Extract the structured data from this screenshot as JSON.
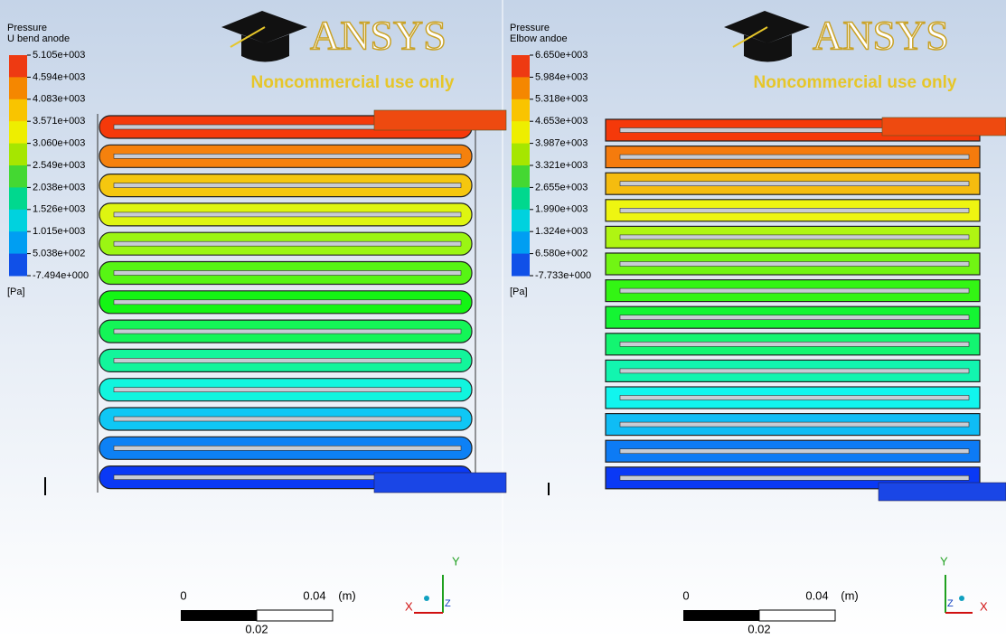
{
  "panels": [
    {
      "legend": {
        "title": "Pressure",
        "subtitle": "U bend anode",
        "labels": [
          "5.105e+003",
          "4.594e+003",
          "4.083e+003",
          "3.571e+003",
          "3.060e+003",
          "2.549e+003",
          "2.038e+003",
          "1.526e+003",
          "1.015e+003",
          "5.038e+002",
          "-7.494e+000"
        ],
        "unit": "[Pa]"
      },
      "logo": {
        "brand": "ANSYS",
        "notice": "Noncommercial use only"
      },
      "scale": {
        "start": "0",
        "end": "0.04",
        "unit": "(m)",
        "mid": "0.02"
      },
      "axes": {
        "y": "Y",
        "x": "X",
        "z": "Z"
      }
    },
    {
      "legend": {
        "title": "Pressure",
        "subtitle": "Elbow andoe",
        "labels": [
          "6.650e+003",
          "5.984e+003",
          "5.318e+003",
          "4.653e+003",
          "3.987e+003",
          "3.321e+003",
          "2.655e+003",
          "1.990e+003",
          "1.324e+003",
          "6.580e+002",
          "-7.733e+000"
        ],
        "unit": "[Pa]"
      },
      "logo": {
        "brand": "ANSYS",
        "notice": "Noncommercial use only"
      },
      "scale": {
        "start": "0",
        "end": "0.04",
        "unit": "(m)",
        "mid": "0.02"
      },
      "axes": {
        "y": "Y",
        "x": "X",
        "z": "Z"
      }
    }
  ]
}
